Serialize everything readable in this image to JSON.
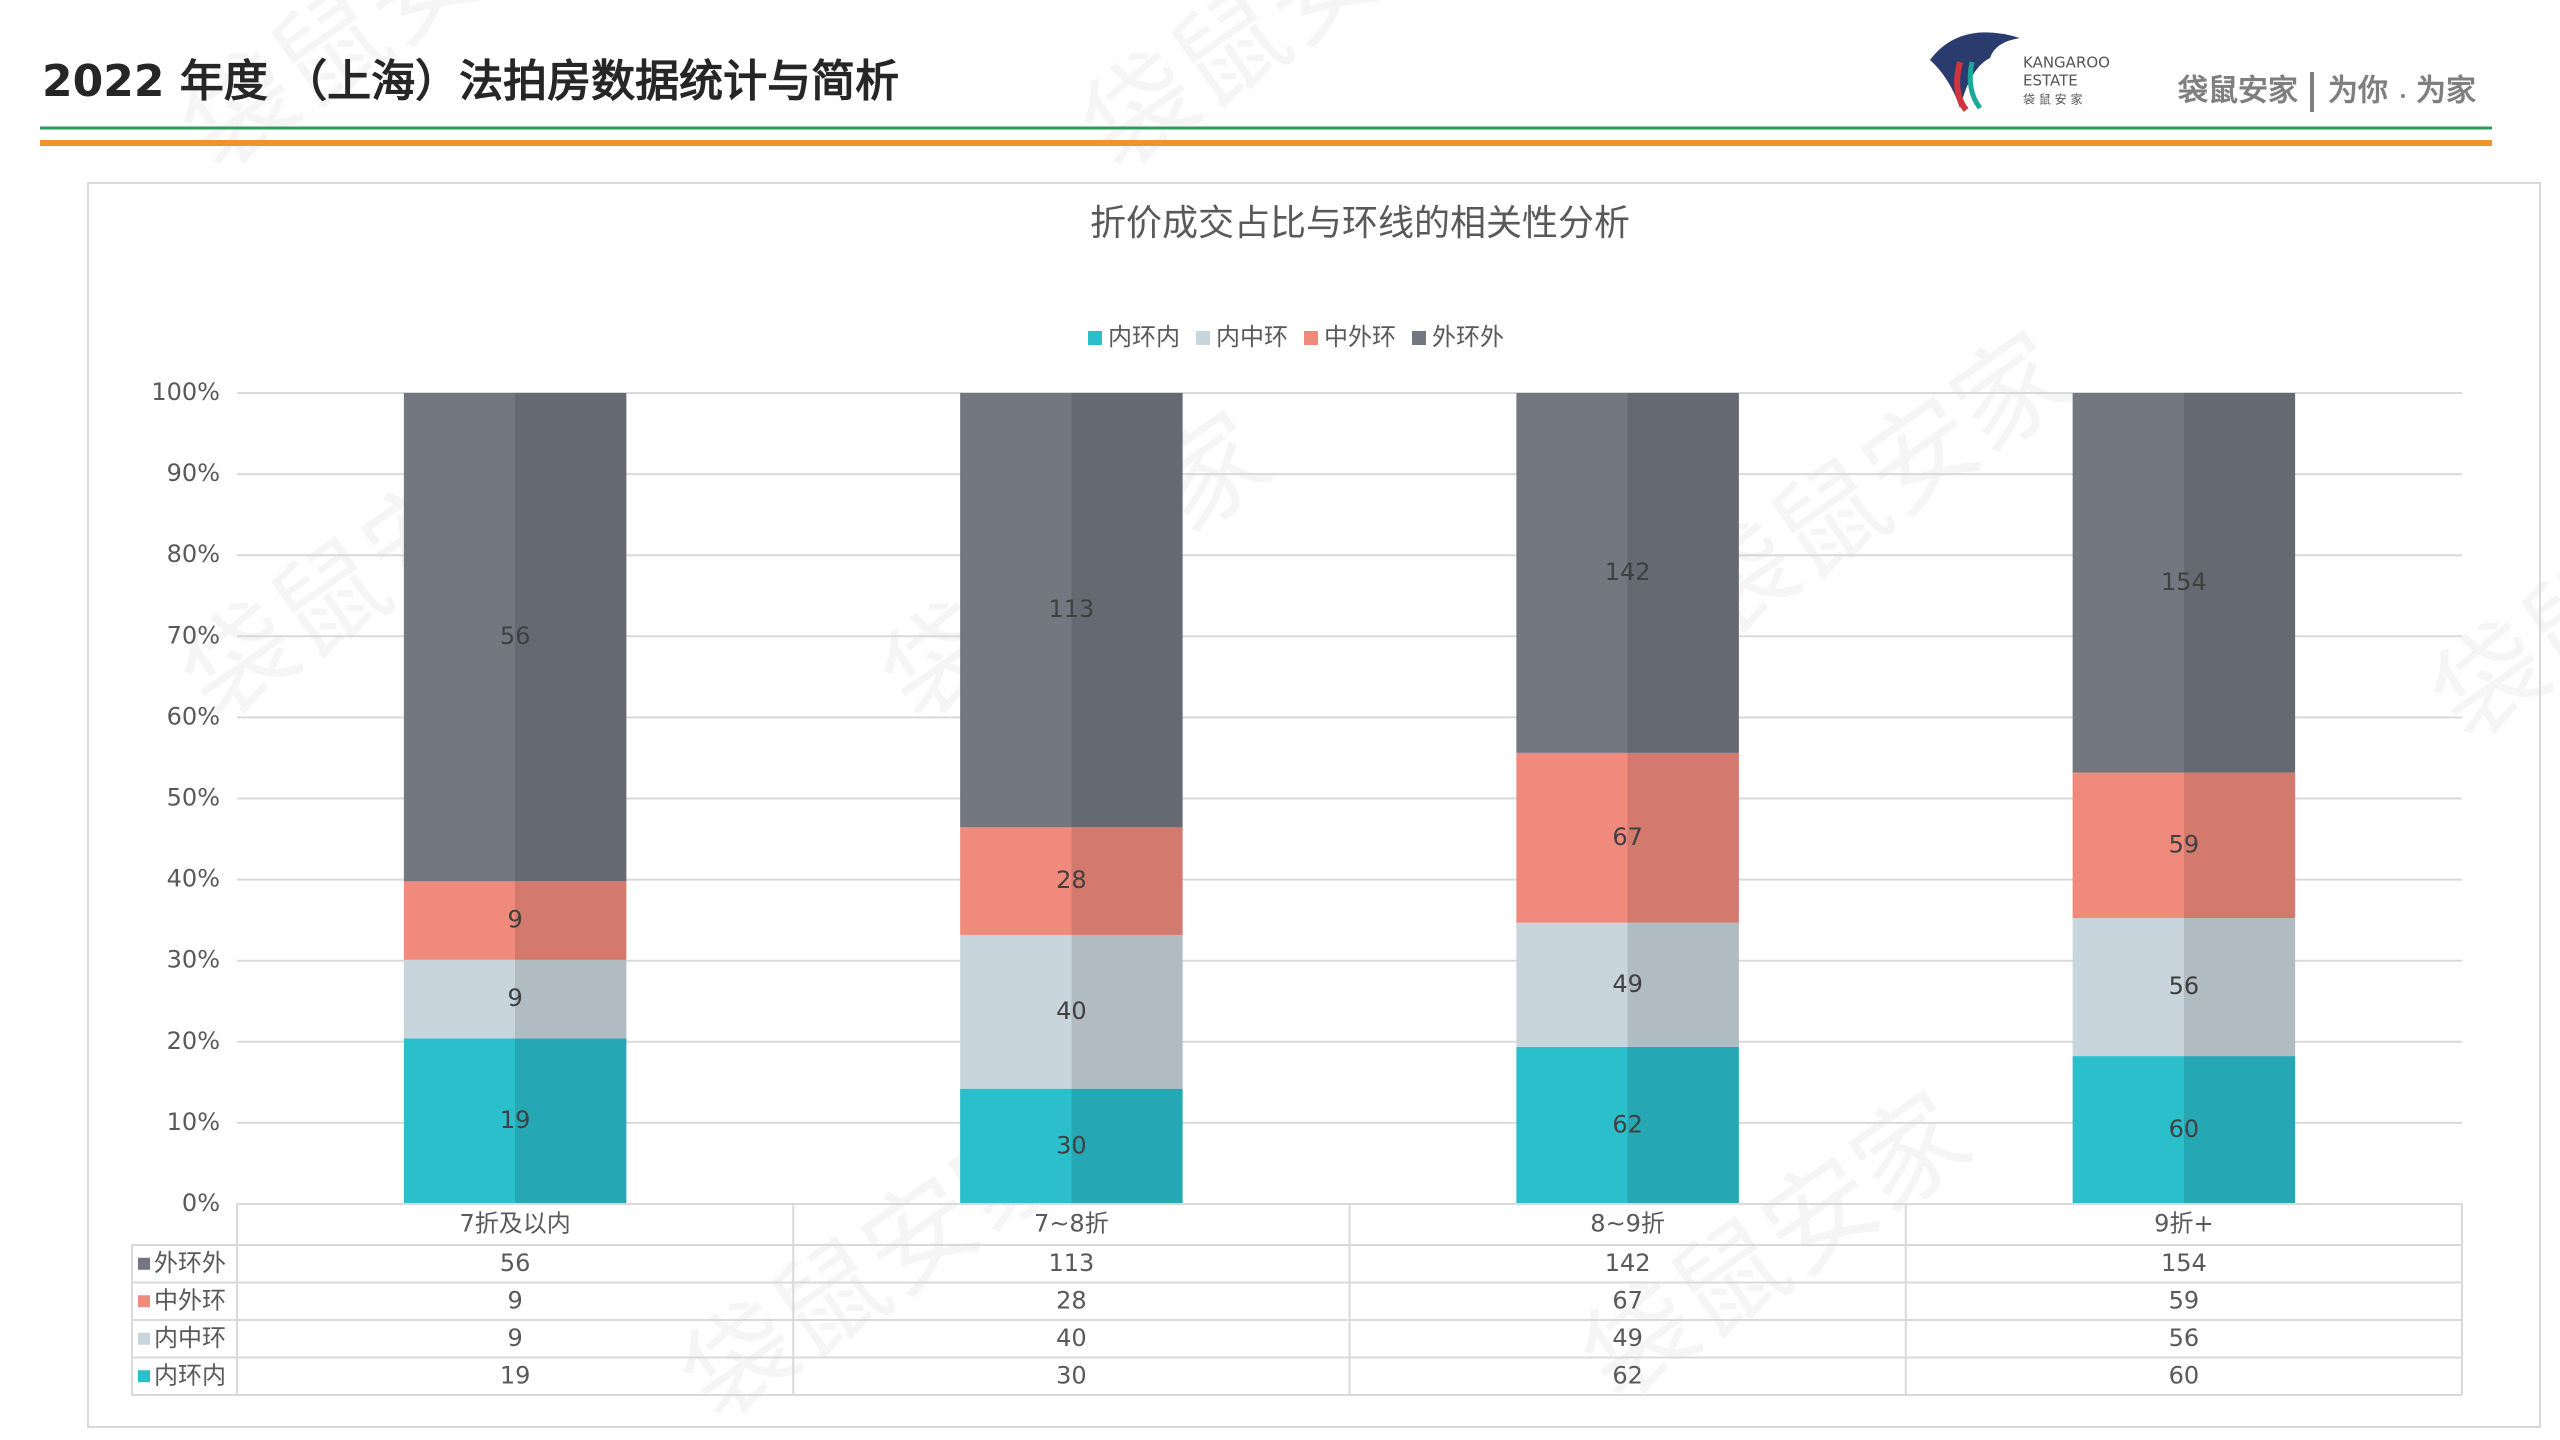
{
  "header": {
    "title": "2022 年度 （上海）法拍房数据统计与简析",
    "brand_en_1": "KANGAROO",
    "brand_en_2": "ESTATE",
    "brand_cn": "袋 鼠 安 家",
    "slogan_1": "袋鼠安家",
    "slogan_2": "为你",
    "slogan_3": "为家",
    "watermark": "袋鼠安家"
  },
  "chart_data": {
    "type": "bar",
    "stacking": "percent",
    "title": "折价成交占比与环线的相关性分析",
    "categories": [
      "7折及以内",
      "7~8折",
      "8~9折",
      "9折+"
    ],
    "series": [
      {
        "name": "内环内",
        "color": "#2bbfcc",
        "values": [
          19,
          30,
          62,
          60
        ]
      },
      {
        "name": "内中环",
        "color": "#c9d5dc",
        "values": [
          9,
          40,
          49,
          56
        ]
      },
      {
        "name": "中外环",
        "color": "#f08a7c",
        "values": [
          9,
          28,
          67,
          59
        ]
      },
      {
        "name": "外环外",
        "color": "#737780",
        "values": [
          56,
          113,
          142,
          154
        ]
      }
    ],
    "ylim": [
      0,
      100
    ],
    "yticks": [
      {
        "value": 0,
        "label": "0%"
      },
      {
        "value": 10,
        "label": "10%"
      },
      {
        "value": 20,
        "label": "20%"
      },
      {
        "value": 30,
        "label": "30%"
      },
      {
        "value": 40,
        "label": "40%"
      },
      {
        "value": 50,
        "label": "50%"
      },
      {
        "value": 60,
        "label": "60%"
      },
      {
        "value": 70,
        "label": "70%"
      },
      {
        "value": 80,
        "label": "80%"
      },
      {
        "value": 90,
        "label": "90%"
      },
      {
        "value": 100,
        "label": "100%"
      }
    ],
    "grid": true,
    "legend": "top",
    "data_table": true
  }
}
